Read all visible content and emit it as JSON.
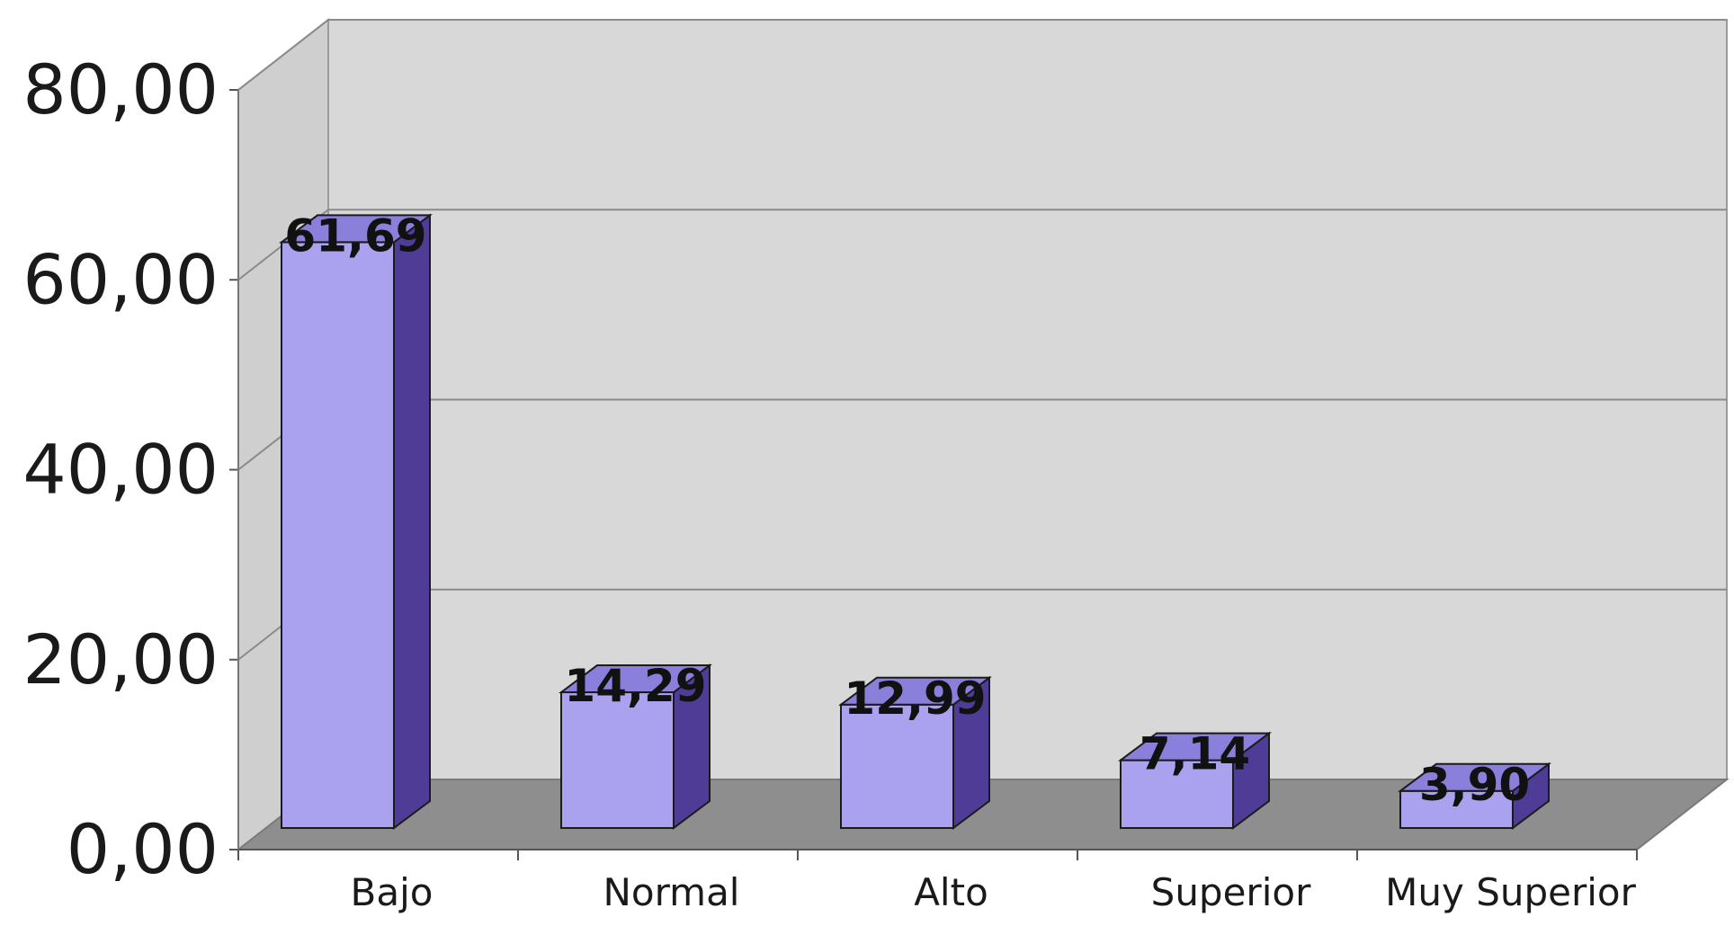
{
  "chart_data": {
    "type": "bar",
    "title": "",
    "xlabel": "",
    "ylabel": "",
    "categories": [
      "Bajo",
      "Normal",
      "Alto",
      "Superior",
      "Muy Superior"
    ],
    "values": [
      61.69,
      14.29,
      12.99,
      7.14,
      3.9
    ],
    "data_labels": [
      "61,69",
      "14,29",
      "12,99",
      "7,14",
      "3,90"
    ],
    "y_ticks": [
      0,
      20,
      40,
      60,
      80
    ],
    "y_tick_labels": [
      "0,00",
      "20,00",
      "40,00",
      "60,00",
      "80,00"
    ],
    "ylim": [
      0,
      80
    ],
    "grid": true,
    "style": "3d",
    "colors": {
      "bar_front": "#aaa2ee",
      "bar_side": "#4f3c96",
      "bar_top": "#8b7fdc",
      "wall": "#d8d8d8",
      "side_wall": "#cfcfcf",
      "floor": "#8e8e8e"
    }
  }
}
